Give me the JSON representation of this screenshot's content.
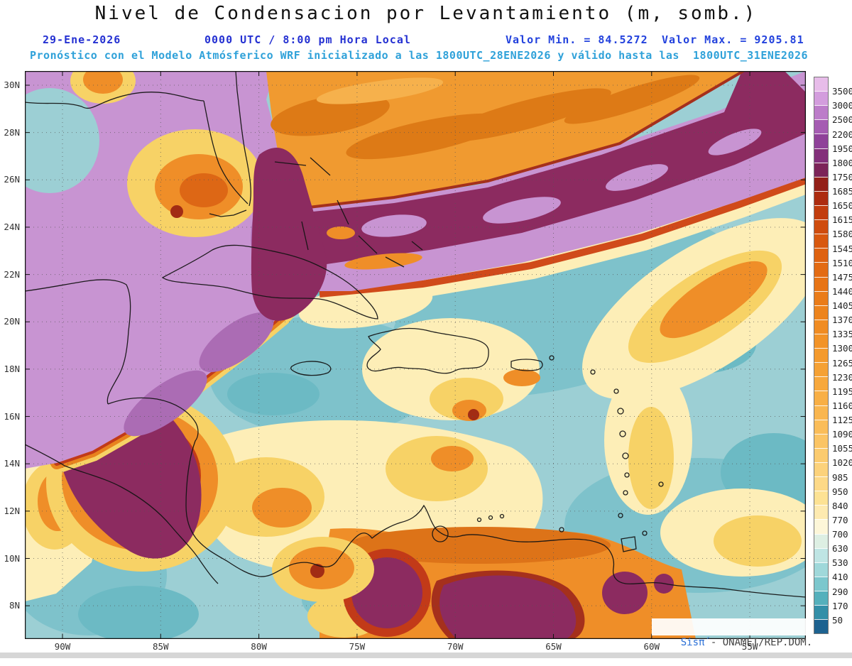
{
  "header": {
    "title": "Nivel de Condensacion por Levantamiento (m, somb.)",
    "date": "29-Ene-2026",
    "time": "0000 UTC / 8:00 pm Hora Local",
    "valor_min": "Valor Min. = 84.5272",
    "valor_max": "Valor Max. = 9205.81",
    "forecast": "Pronóstico con el Modelo Atmósferico WRF inicializado a las 1800UTC_28ENE2026 y válido hasta las  1800UTC_31ENE2026"
  },
  "axes": {
    "lat_labels": [
      "30N",
      "28N",
      "26N",
      "24N",
      "22N",
      "20N",
      "18N",
      "16N",
      "14N",
      "12N",
      "10N",
      "8N"
    ],
    "lon_labels": [
      "90W",
      "85W",
      "80W",
      "75W",
      "70W",
      "65W",
      "60W",
      "55W"
    ]
  },
  "colorbar": {
    "labels": [
      "3500",
      "3000",
      "2500",
      "2200",
      "1950",
      "1800",
      "1750",
      "1685",
      "1650",
      "1615",
      "1580",
      "1545",
      "1510",
      "1475",
      "1440",
      "1405",
      "1370",
      "1335",
      "1300",
      "1265",
      "1230",
      "1195",
      "1160",
      "1125",
      "1090",
      "1055",
      "1020",
      "985",
      "950",
      "840",
      "770",
      "700",
      "630",
      "530",
      "410",
      "290",
      "170",
      "50"
    ],
    "colors": [
      "#e7bce9",
      "#d39ddd",
      "#bc7cc9",
      "#a55cb2",
      "#8f4199",
      "#83307a",
      "#7c2458",
      "#932018",
      "#ad2c10",
      "#c23d0e",
      "#cf4c0e",
      "#d8580f",
      "#de6211",
      "#e36b13",
      "#e77416",
      "#ea7c19",
      "#ed841d",
      "#f08c22",
      "#f29327",
      "#f49a2d",
      "#f5a134",
      "#f7a83c",
      "#f8af45",
      "#f9b64f",
      "#fabd59",
      "#fbc464",
      "#fbcb6f",
      "#fcd27b",
      "#fdd987",
      "#fde294",
      "#feeab0",
      "#fdf6d8",
      "#ddefe3",
      "#bfe5e4",
      "#9fd8da",
      "#7cc7cd",
      "#55b0bc",
      "#338fa8",
      "#1d6290"
    ]
  },
  "watermark": {
    "brand": "Sisπ́",
    "credit": " - ONAMET/REP.DOM."
  },
  "meta": {
    "accent_blue": "#2531d2",
    "accent_cyan": "#2fa1d9"
  }
}
